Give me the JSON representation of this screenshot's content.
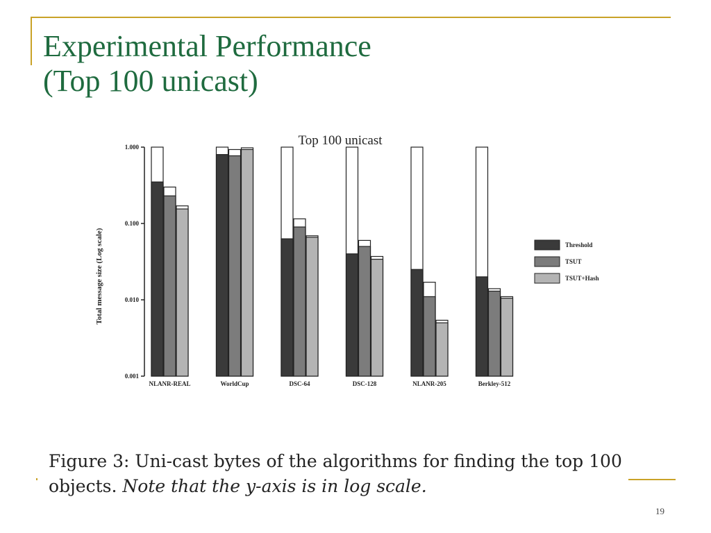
{
  "slide": {
    "title_line1": "Experimental Performance",
    "title_line2": "(Top 100 unicast)",
    "caption_bold": "Figure 3: Uni-cast bytes of the algorithms for finding the top 100 objects.",
    "caption_italic": "Note that the y-axis is in log scale.",
    "slide_number": "19",
    "accent_color": "#c9a227",
    "title_color": "#1f6b3f"
  },
  "chart_data": {
    "type": "bar",
    "title": "Top 100 unicast",
    "ylabel": "Total message size (Log scale)",
    "xlabel": "",
    "yscale": "log",
    "ylim": [
      0.001,
      1.0
    ],
    "yticks": [
      0.001,
      0.01,
      0.1,
      1.0
    ],
    "ytick_labels": [
      "0.001",
      "0.010",
      "0.100",
      "1.000"
    ],
    "categories": [
      "NLANR-REAL",
      "WorldCup",
      "DSC-64",
      "DSC-128",
      "NLANR-205",
      "Berkley-512"
    ],
    "legend_position": "right",
    "series": [
      {
        "name": "Threshold",
        "color": "#3a3a3a",
        "values": [
          0.35,
          0.8,
          0.063,
          0.04,
          0.025,
          0.02
        ],
        "totals": [
          1.0,
          1.0,
          1.0,
          1.0,
          1.0,
          1.0
        ]
      },
      {
        "name": "TSUT",
        "color": "#7c7c7c",
        "values": [
          0.23,
          0.77,
          0.09,
          0.05,
          0.011,
          0.013
        ],
        "totals": [
          0.3,
          0.93,
          0.115,
          0.06,
          0.017,
          0.014
        ]
      },
      {
        "name": "TSUT+Hash",
        "color": "#b4b4b4",
        "values": [
          0.155,
          0.93,
          0.066,
          0.034,
          0.005,
          0.0105
        ],
        "totals": [
          0.17,
          0.98,
          0.069,
          0.037,
          0.0054,
          0.011
        ]
      }
    ]
  }
}
